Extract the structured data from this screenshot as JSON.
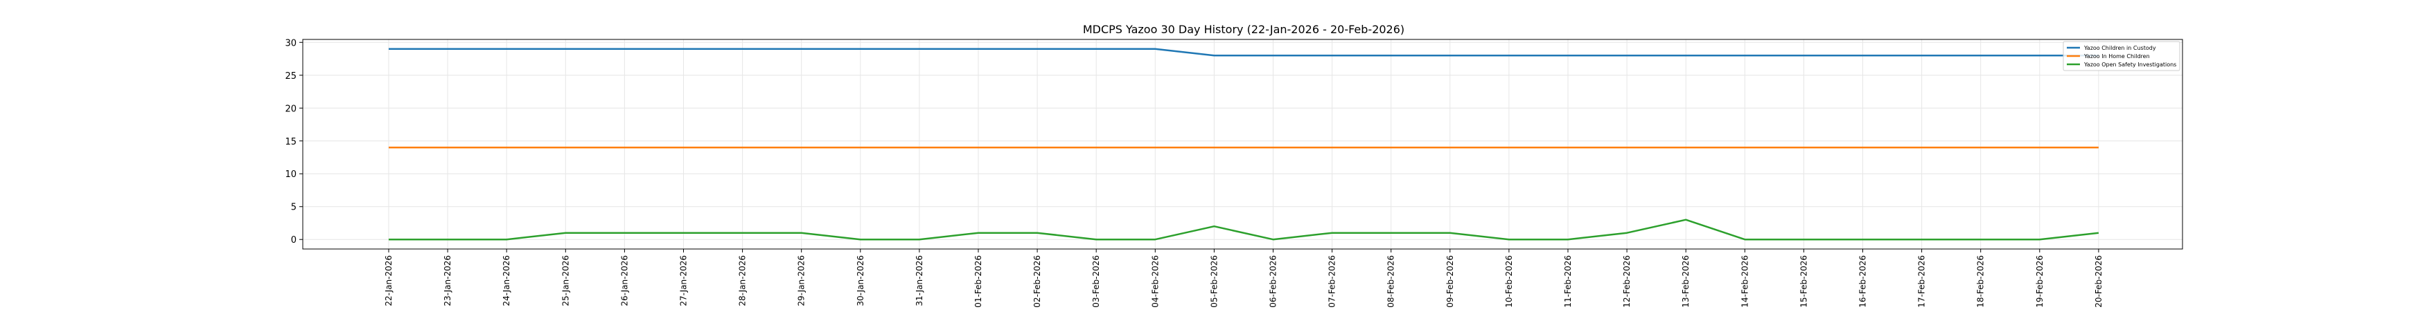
{
  "chart_data": {
    "type": "line",
    "title": "MDCPS Yazoo 30 Day History (22-Jan-2026 - 20-Feb-2026)",
    "xlabel": "",
    "ylabel": "",
    "categories": [
      "22-Jan-2026",
      "23-Jan-2026",
      "24-Jan-2026",
      "25-Jan-2026",
      "26-Jan-2026",
      "27-Jan-2026",
      "28-Jan-2026",
      "29-Jan-2026",
      "30-Jan-2026",
      "31-Jan-2026",
      "01-Feb-2026",
      "02-Feb-2026",
      "03-Feb-2026",
      "04-Feb-2026",
      "05-Feb-2026",
      "06-Feb-2026",
      "07-Feb-2026",
      "08-Feb-2026",
      "09-Feb-2026",
      "10-Feb-2026",
      "11-Feb-2026",
      "12-Feb-2026",
      "13-Feb-2026",
      "14-Feb-2026",
      "15-Feb-2026",
      "16-Feb-2026",
      "17-Feb-2026",
      "18-Feb-2026",
      "19-Feb-2026",
      "20-Feb-2026"
    ],
    "ylim": [
      -1.45,
      30.45
    ],
    "yticks": [
      0,
      5,
      10,
      15,
      20,
      25,
      30
    ],
    "grid": true,
    "legend_position": "top-right",
    "series": [
      {
        "name": "Yazoo Children in Custody",
        "color": "#1f77b4",
        "values": [
          29,
          29,
          29,
          29,
          29,
          29,
          29,
          29,
          29,
          29,
          29,
          29,
          29,
          29,
          28,
          28,
          28,
          28,
          28,
          28,
          28,
          28,
          28,
          28,
          28,
          28,
          28,
          28,
          28,
          28
        ]
      },
      {
        "name": "Yazoo In Home Children",
        "color": "#ff7f0e",
        "values": [
          14,
          14,
          14,
          14,
          14,
          14,
          14,
          14,
          14,
          14,
          14,
          14,
          14,
          14,
          14,
          14,
          14,
          14,
          14,
          14,
          14,
          14,
          14,
          14,
          14,
          14,
          14,
          14,
          14,
          14
        ]
      },
      {
        "name": "Yazoo Open Safety Investigations",
        "color": "#2ca02c",
        "values": [
          0,
          0,
          0,
          1,
          1,
          1,
          1,
          1,
          0,
          0,
          1,
          1,
          0,
          0,
          2,
          0,
          1,
          1,
          1,
          0,
          0,
          1,
          3,
          0,
          0,
          0,
          0,
          0,
          0,
          1
        ]
      }
    ]
  }
}
